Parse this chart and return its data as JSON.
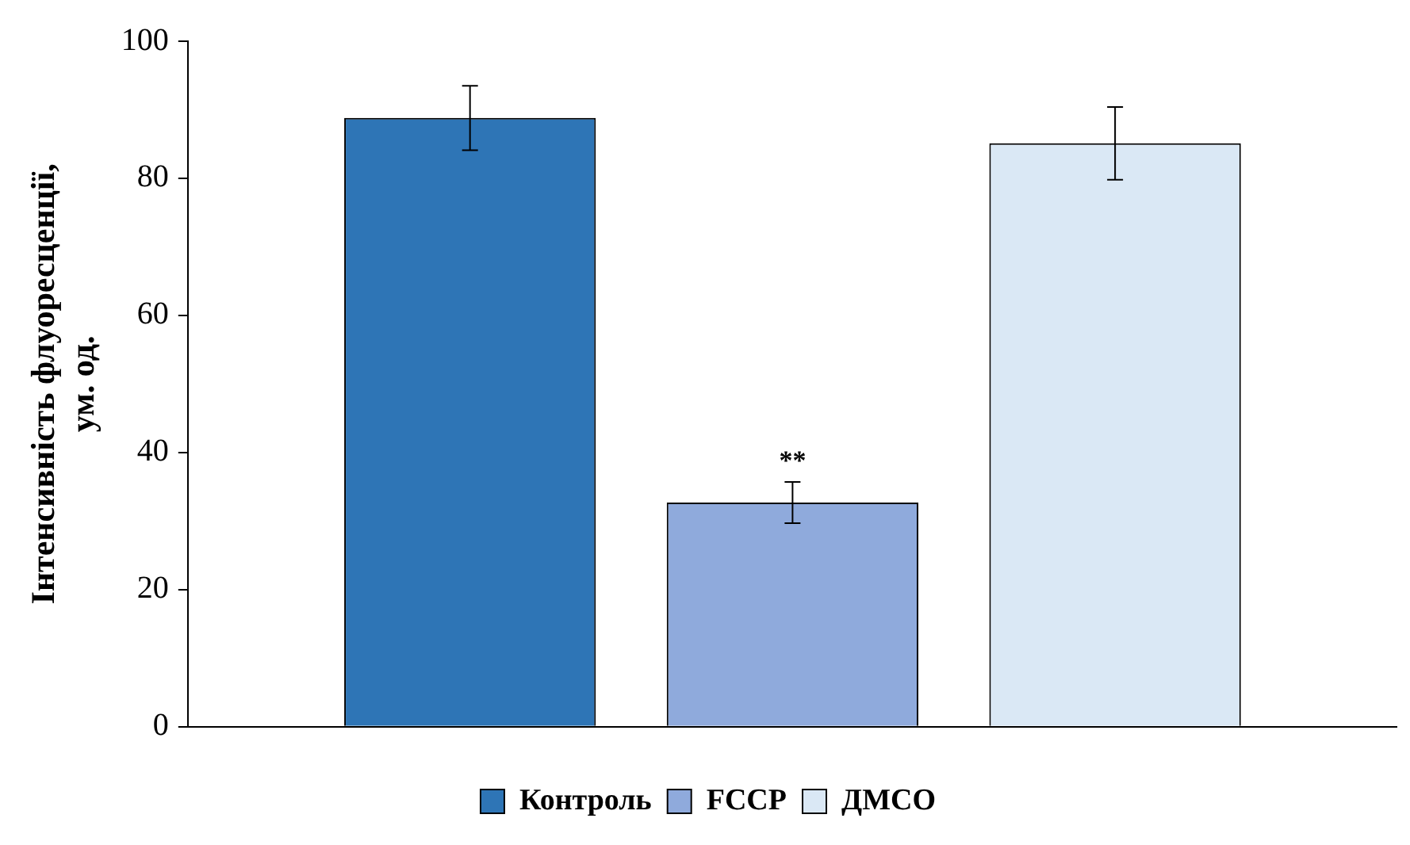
{
  "chart_data": {
    "type": "bar",
    "ylabel": "Інтенсивність флуоресценції, ум. од.",
    "categories": [
      null
    ],
    "series": [
      {
        "name": "Контроль",
        "color": "#2e75b6",
        "values": [
          88.8
        ],
        "errors": [
          4.7
        ]
      },
      {
        "name": "FCCP",
        "color": "#8faadc",
        "values": [
          32.7
        ],
        "errors": [
          3
        ]
      },
      {
        "name": "ДМСО",
        "color": "#dae8f5",
        "values": [
          85.1
        ],
        "errors": [
          5.3
        ]
      }
    ],
    "ylim": [
      0,
      100
    ],
    "yticks": [
      0,
      20,
      40,
      60,
      80,
      100
    ],
    "legend": "bottom",
    "grid": false,
    "annotations": [
      "**"
    ]
  }
}
